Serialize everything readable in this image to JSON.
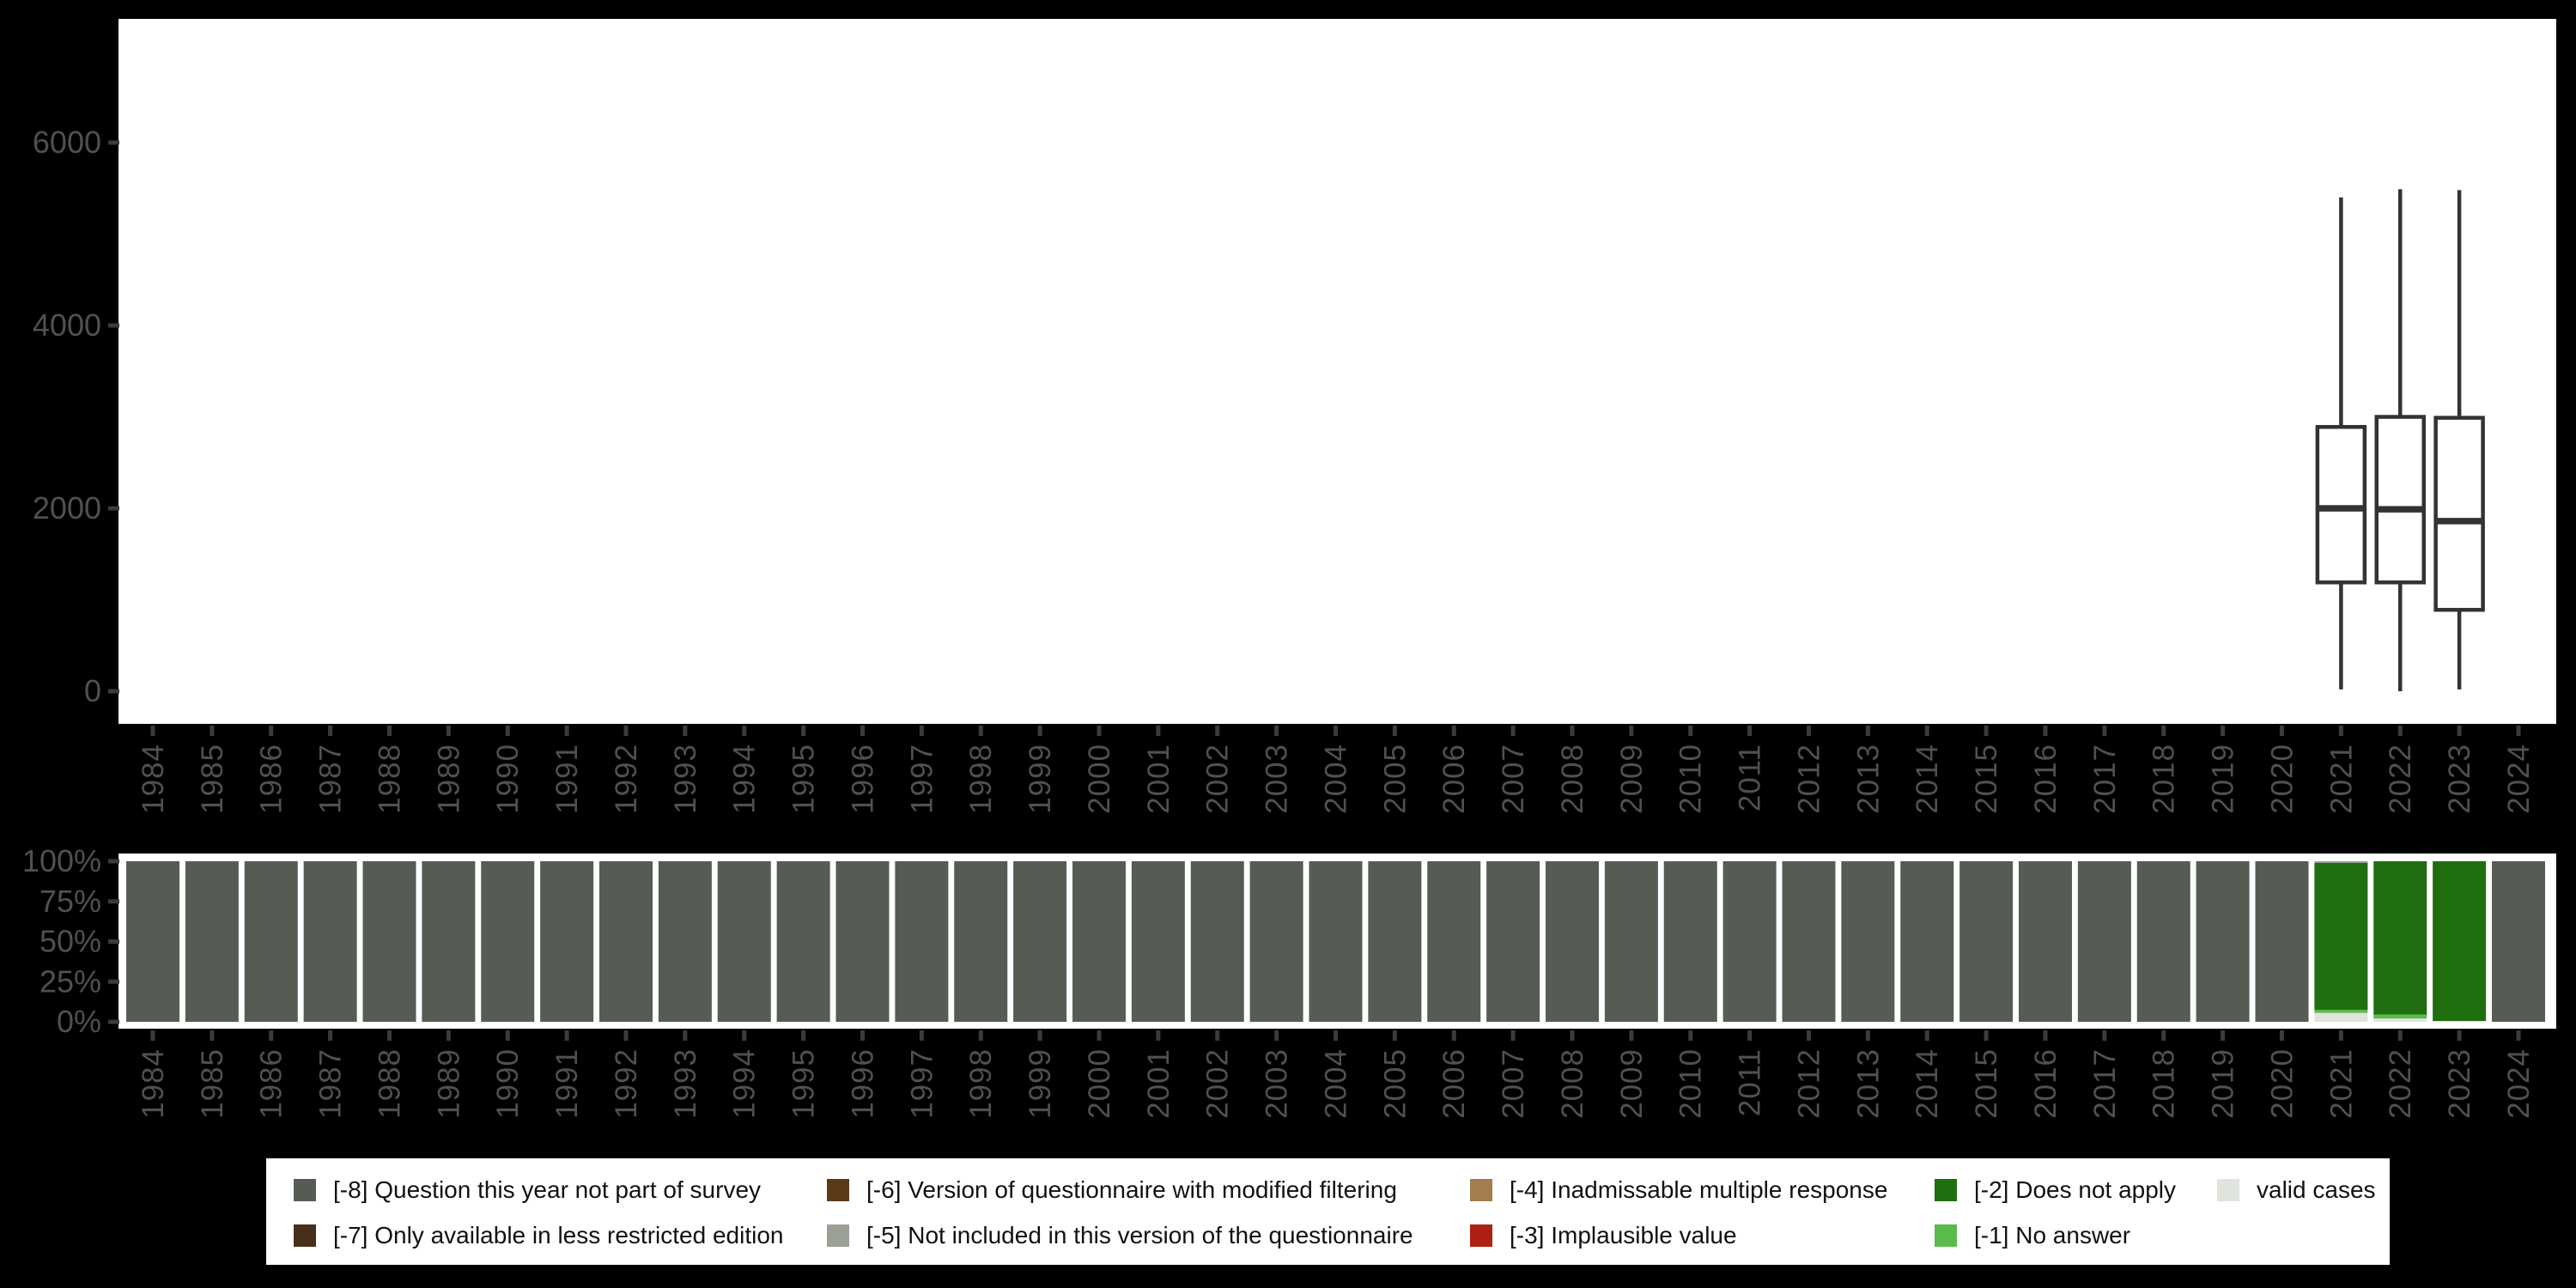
{
  "page": {
    "background_color": "#000000",
    "panel_color": "#ffffff",
    "tick_color": "#3b3b3b",
    "axis_label_color": "#505050"
  },
  "years": [
    "1984",
    "1985",
    "1986",
    "1987",
    "1988",
    "1989",
    "1990",
    "1991",
    "1992",
    "1993",
    "1994",
    "1995",
    "1996",
    "1997",
    "1998",
    "1999",
    "2000",
    "2001",
    "2002",
    "2003",
    "2004",
    "2005",
    "2006",
    "2007",
    "2008",
    "2009",
    "2010",
    "2011",
    "2012",
    "2013",
    "2014",
    "2015",
    "2016",
    "2017",
    "2018",
    "2019",
    "2020",
    "2021",
    "2022",
    "2023",
    "2024"
  ],
  "chart_data": [
    {
      "type": "boxplot",
      "title": "",
      "xlabel": "",
      "ylabel": "",
      "x_categories": [
        "1984",
        "1985",
        "1986",
        "1987",
        "1988",
        "1989",
        "1990",
        "1991",
        "1992",
        "1993",
        "1994",
        "1995",
        "1996",
        "1997",
        "1998",
        "1999",
        "2000",
        "2001",
        "2002",
        "2003",
        "2004",
        "2005",
        "2006",
        "2007",
        "2008",
        "2009",
        "2010",
        "2011",
        "2012",
        "2013",
        "2014",
        "2015",
        "2016",
        "2017",
        "2018",
        "2019",
        "2020",
        "2021",
        "2022",
        "2023",
        "2024"
      ],
      "ylim": [
        -350,
        7350
      ],
      "yticks": [
        0,
        2000,
        4000,
        6000
      ],
      "ytick_labels": [
        "0",
        "2000",
        "4000",
        "6000"
      ],
      "grid": false,
      "legend_position": "none",
      "box_stroke_color": "#333333",
      "boxes": [
        {
          "category": "2021",
          "min": 20,
          "q1": 1190,
          "median": 2000,
          "q3": 2890,
          "max": 5400
        },
        {
          "category": "2022",
          "min": 0,
          "q1": 1190,
          "median": 1990,
          "q3": 3000,
          "max": 5490
        },
        {
          "category": "2023",
          "min": 20,
          "q1": 890,
          "median": 1860,
          "q3": 2990,
          "max": 5480
        }
      ]
    },
    {
      "type": "stacked-bar-percent",
      "title": "",
      "xlabel": "",
      "ylabel": "",
      "categories": [
        "1984",
        "1985",
        "1986",
        "1987",
        "1988",
        "1989",
        "1990",
        "1991",
        "1992",
        "1993",
        "1994",
        "1995",
        "1996",
        "1997",
        "1998",
        "1999",
        "2000",
        "2001",
        "2002",
        "2003",
        "2004",
        "2005",
        "2006",
        "2007",
        "2008",
        "2009",
        "2010",
        "2011",
        "2012",
        "2013",
        "2014",
        "2015",
        "2016",
        "2017",
        "2018",
        "2019",
        "2020",
        "2021",
        "2022",
        "2023",
        "2024"
      ],
      "ylim": [
        0,
        100
      ],
      "yticks": [
        0,
        25,
        50,
        75,
        100
      ],
      "ytick_labels": [
        "0%",
        "25%",
        "50%",
        "75%",
        "100%"
      ],
      "grid": false,
      "segment_order_note": "segments listed top to bottom of each bar, values are percent",
      "default_stack": [
        [
          "-8",
          100
        ]
      ],
      "stacks": {
        "2021": [
          [
            "-5",
            1
          ],
          [
            "-2",
            91.5
          ],
          [
            "-1",
            2
          ],
          [
            "valid",
            5.5
          ]
        ],
        "2022": [
          [
            "-2",
            95.5
          ],
          [
            "-1",
            2.5
          ],
          [
            "valid",
            2
          ]
        ],
        "2023": [
          [
            "-2",
            99.5
          ],
          [
            "valid",
            0.5
          ]
        ]
      }
    }
  ],
  "colors": {
    "-8": "#565c54",
    "-7": "#47301b",
    "-6": "#5a3a17",
    "-5": "#9aa096",
    "-4": "#a37d50",
    "-3": "#ae2014",
    "-2": "#216e10",
    "-1": "#5abb4a",
    "valid": "#dfe4dc"
  },
  "legend": {
    "items": [
      {
        "key": "-8",
        "label": "[-8] Question this year not part of survey",
        "color": "#565c54",
        "col": 0,
        "row": 0
      },
      {
        "key": "-7",
        "label": "[-7] Only available in less restricted edition",
        "color": "#47301b",
        "col": 0,
        "row": 1
      },
      {
        "key": "-6",
        "label": "[-6] Version of questionnaire with modified filtering",
        "color": "#5a3a17",
        "col": 1,
        "row": 0
      },
      {
        "key": "-5",
        "label": "[-5] Not included in this version of the questionnaire",
        "color": "#9aa096",
        "col": 1,
        "row": 1
      },
      {
        "key": "-4",
        "label": "[-4] Inadmissable multiple response",
        "color": "#a37d50",
        "col": 2,
        "row": 0
      },
      {
        "key": "-3",
        "label": "[-3] Implausible value",
        "color": "#ae2014",
        "col": 2,
        "row": 1
      },
      {
        "key": "-2",
        "label": "[-2] Does not apply",
        "color": "#216e10",
        "col": 3,
        "row": 0
      },
      {
        "key": "-1",
        "label": "[-1] No answer",
        "color": "#5abb4a",
        "col": 3,
        "row": 1
      },
      {
        "key": "valid",
        "label": "valid cases",
        "color": "#dfe4dc",
        "col": 4,
        "row": 0
      }
    ]
  }
}
